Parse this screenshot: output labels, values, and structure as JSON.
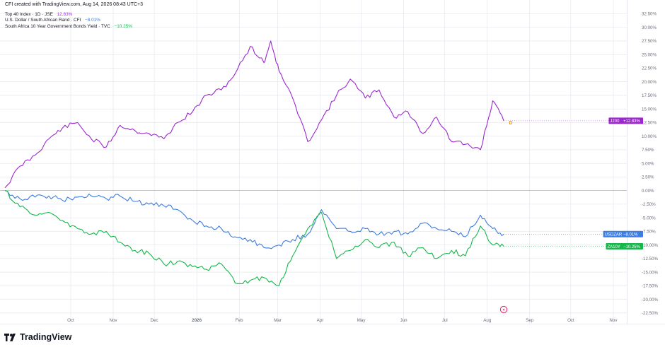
{
  "header": {
    "credit": "CFI created with TradingView.com, Aug 14, 2026 08:43 UTC+3"
  },
  "footer": {
    "brand": "TradingView"
  },
  "colors": {
    "purple": "#9c27d0",
    "blue": "#3d7ce0",
    "green": "#14b84a",
    "grid": "#e0e3eb",
    "text": "#131722",
    "axis_text": "#6a6d78",
    "earnings_badge": "#ff9800",
    "flash_badge": "#e91e63"
  },
  "markers": {
    "earnings": "D"
  },
  "chart_data": {
    "type": "line",
    "title": "",
    "xlabel": "",
    "ylabel": "",
    "ylim": [
      -22.5,
      32.5
    ],
    "y_unit": "%",
    "grid": true,
    "legend_position": "top-left",
    "y_ticks": [
      "32.50%",
      "30.00%",
      "27.50%",
      "25.00%",
      "22.50%",
      "20.00%",
      "17.50%",
      "15.00%",
      "12.50%",
      "10.00%",
      "7.50%",
      "5.00%",
      "2.50%",
      "0.00%",
      "-2.50%",
      "-5.00%",
      "-7.50%",
      "-10.00%",
      "-12.50%",
      "-15.00%",
      "-17.50%",
      "-20.00%",
      "-22.50%"
    ],
    "x_ticks": [
      "Oct",
      "Nov",
      "Dec",
      "2026",
      "Feb",
      "Mar",
      "Apr",
      "May",
      "Jun",
      "Jul",
      "Aug",
      "Sep",
      "Oct",
      "Nov"
    ],
    "series": [
      {
        "name": "Top 40 Index · 1D · JSE",
        "value_label": "12.83%",
        "tag": "J200",
        "tag_value": "+12.83%",
        "color": "#9c27d0",
        "x": [
          "2025-08-14",
          "2025-08-25",
          "2025-09-05",
          "2025-09-15",
          "2025-09-25",
          "2025-10-06",
          "2025-10-16",
          "2025-10-27",
          "2025-11-06",
          "2025-11-17",
          "2025-11-27",
          "2025-12-08",
          "2025-12-18",
          "2025-12-29",
          "2026-01-08",
          "2026-01-19",
          "2026-01-29",
          "2026-02-09",
          "2026-02-19",
          "2026-02-24",
          "2026-03-02",
          "2026-03-12",
          "2026-03-23",
          "2026-04-02",
          "2026-04-13",
          "2026-04-23",
          "2026-05-04",
          "2026-05-14",
          "2026-05-25",
          "2026-06-04",
          "2026-06-15",
          "2026-06-25",
          "2026-07-06",
          "2026-07-16",
          "2026-07-27",
          "2026-08-05",
          "2026-08-13"
        ],
        "values": [
          0.5,
          4.5,
          6.5,
          9.5,
          11.5,
          12.5,
          9.5,
          8.0,
          12.0,
          11.0,
          10.5,
          9.5,
          12.5,
          14.5,
          17.5,
          18.5,
          21.5,
          26.5,
          23.5,
          27.5,
          22.0,
          17.0,
          9.0,
          13.0,
          17.5,
          20.5,
          17.0,
          18.5,
          13.5,
          14.5,
          10.5,
          13.5,
          9.0,
          8.5,
          7.5,
          16.5,
          12.83
        ]
      },
      {
        "name": "U.S. Dollar / South African Rand · CFI",
        "value_label": "−8.01%",
        "tag": "USDZAR",
        "tag_value": "−8.01%",
        "color": "#3d7ce0",
        "x": [
          "2025-08-14",
          "2025-08-25",
          "2025-09-05",
          "2025-09-15",
          "2025-09-25",
          "2025-10-06",
          "2025-10-16",
          "2025-10-27",
          "2025-11-06",
          "2025-11-17",
          "2025-11-27",
          "2025-12-08",
          "2025-12-18",
          "2025-12-29",
          "2026-01-08",
          "2026-01-19",
          "2026-01-29",
          "2026-02-09",
          "2026-02-19",
          "2026-03-02",
          "2026-03-12",
          "2026-03-23",
          "2026-04-02",
          "2026-04-13",
          "2026-04-23",
          "2026-05-04",
          "2026-05-14",
          "2026-05-25",
          "2026-06-04",
          "2026-06-15",
          "2026-06-25",
          "2026-07-06",
          "2026-07-16",
          "2026-07-27",
          "2026-08-05",
          "2026-08-13"
        ],
        "values": [
          0.0,
          -1.5,
          -1.2,
          -1.0,
          -1.8,
          -1.2,
          -1.0,
          -1.5,
          -1.0,
          -2.0,
          -2.5,
          -2.8,
          -3.5,
          -5.5,
          -6.5,
          -7.0,
          -8.5,
          -9.0,
          -10.5,
          -10.0,
          -9.0,
          -8.0,
          -3.5,
          -7.0,
          -7.5,
          -7.0,
          -8.0,
          -7.5,
          -8.0,
          -6.0,
          -7.0,
          -7.5,
          -8.5,
          -4.5,
          -7.0,
          -8.01
        ]
      },
      {
        "name": "South Africa 10 Year Government Bonds Yield · TVC",
        "value_label": "−10.25%",
        "tag": "ZA10Y",
        "tag_value": "−10.25%",
        "color": "#14b84a",
        "x": [
          "2025-08-14",
          "2025-08-25",
          "2025-09-05",
          "2025-09-15",
          "2025-09-25",
          "2025-10-06",
          "2025-10-16",
          "2025-10-27",
          "2025-11-06",
          "2025-11-17",
          "2025-11-27",
          "2025-12-08",
          "2025-12-18",
          "2025-12-29",
          "2026-01-08",
          "2026-01-19",
          "2026-01-29",
          "2026-02-09",
          "2026-02-19",
          "2026-03-02",
          "2026-03-12",
          "2026-03-23",
          "2026-04-02",
          "2026-04-13",
          "2026-04-23",
          "2026-05-04",
          "2026-05-14",
          "2026-05-25",
          "2026-06-04",
          "2026-06-15",
          "2026-06-25",
          "2026-07-06",
          "2026-07-16",
          "2026-07-27",
          "2026-08-05",
          "2026-08-13"
        ],
        "values": [
          0.0,
          -3.0,
          -4.5,
          -4.0,
          -5.5,
          -7.0,
          -8.0,
          -7.5,
          -9.5,
          -11.0,
          -11.5,
          -13.5,
          -13.0,
          -14.0,
          -14.5,
          -13.5,
          -17.0,
          -16.5,
          -16.0,
          -17.5,
          -12.0,
          -7.0,
          -4.0,
          -12.5,
          -11.0,
          -9.0,
          -10.5,
          -9.5,
          -12.0,
          -10.5,
          -12.5,
          -11.0,
          -12.0,
          -6.5,
          -10.0,
          -10.25
        ]
      }
    ]
  }
}
